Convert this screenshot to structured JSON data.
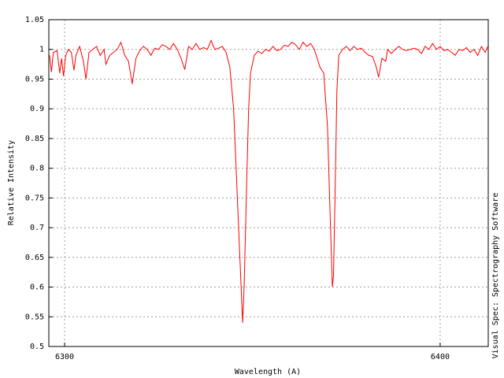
{
  "chart_data": {
    "type": "line",
    "xlabel": "Wavelength (A)",
    "ylabel": "Relative Intensity",
    "annotation": "Visual Spec: Spectrography Software",
    "color": "#ff0000",
    "grid": true,
    "xlim": [
      6295.8,
      6412.8
    ],
    "ylim": [
      0.5,
      1.05
    ],
    "xticks": [
      6300,
      6400
    ],
    "yticks": [
      0.5,
      0.55,
      0.6,
      0.65,
      0.7,
      0.75,
      0.8,
      0.85,
      0.9,
      0.95,
      1,
      1.05
    ],
    "x": [
      6296,
      6296.5,
      6297,
      6298,
      6298.7,
      6299.2,
      6299.7,
      6300.3,
      6301,
      6301.8,
      6302.5,
      6303,
      6304,
      6305,
      6305.7,
      6306.5,
      6307.5,
      6308.5,
      6309.5,
      6310.5,
      6311,
      6312,
      6313,
      6314,
      6315,
      6316,
      6317,
      6318,
      6319,
      6320,
      6321,
      6322,
      6323,
      6324,
      6325,
      6326,
      6327,
      6328,
      6329,
      6330,
      6331,
      6332,
      6333,
      6334,
      6335,
      6336,
      6337,
      6338,
      6339,
      6340,
      6341,
      6342,
      6343,
      6344,
      6345,
      6346,
      6347,
      6347.4,
      6347.8,
      6348.5,
      6349,
      6349.5,
      6350.5,
      6351.5,
      6352.5,
      6353.5,
      6354.5,
      6355.5,
      6356.5,
      6357.5,
      6358.5,
      6359.5,
      6360.5,
      6361.5,
      6362.5,
      6363.5,
      6364.5,
      6365.5,
      6366.5,
      6367,
      6368,
      6369,
      6370,
      6370.8,
      6371.3,
      6371.6,
      6372,
      6372.5,
      6373,
      6374,
      6375,
      6376,
      6377,
      6378,
      6379,
      6380,
      6381,
      6382,
      6383,
      6383.6,
      6384.5,
      6385.5,
      6386,
      6387,
      6388,
      6389,
      6390,
      6391,
      6392,
      6393,
      6394,
      6395,
      6396,
      6397,
      6398,
      6399,
      6400,
      6401,
      6402,
      6403,
      6404,
      6405,
      6406,
      6407,
      6408,
      6409,
      6410,
      6411,
      6412,
      6412.7
    ],
    "values": [
      0.99,
      0.962,
      0.995,
      0.998,
      0.96,
      0.985,
      0.955,
      0.99,
      1.0,
      0.995,
      0.965,
      0.99,
      1.005,
      0.98,
      0.95,
      0.995,
      1.0,
      1.005,
      0.99,
      1.0,
      0.975,
      0.99,
      0.995,
      1.0,
      1.012,
      0.99,
      0.98,
      0.942,
      0.985,
      0.998,
      1.005,
      1.0,
      0.99,
      1.002,
      1.0,
      1.008,
      1.005,
      1.0,
      1.01,
      1.0,
      0.985,
      0.966,
      1.005,
      1.0,
      1.01,
      1.0,
      1.003,
      1.0,
      1.015,
      1.0,
      1.002,
      1.005,
      0.995,
      0.97,
      0.9,
      0.75,
      0.6,
      0.54,
      0.6,
      0.78,
      0.9,
      0.96,
      0.99,
      0.997,
      0.993,
      1.0,
      0.997,
      1.005,
      0.998,
      1.0,
      1.007,
      1.005,
      1.012,
      1.008,
      1.0,
      1.012,
      1.005,
      1.01,
      1.0,
      0.99,
      0.97,
      0.96,
      0.87,
      0.7,
      0.6,
      0.62,
      0.75,
      0.93,
      0.99,
      1.0,
      1.005,
      0.998,
      1.005,
      1.0,
      1.002,
      0.995,
      0.99,
      0.988,
      0.97,
      0.953,
      0.985,
      0.98,
      1.0,
      0.993,
      1.0,
      1.005,
      1.0,
      0.998,
      1.0,
      1.002,
      1.0,
      0.993,
      1.005,
      1.0,
      1.01,
      1.0,
      1.005,
      0.998,
      1.0,
      0.995,
      0.99,
      1.0,
      0.998,
      1.003,
      0.995,
      1.0,
      0.99,
      1.005,
      0.995,
      1.005
    ]
  }
}
